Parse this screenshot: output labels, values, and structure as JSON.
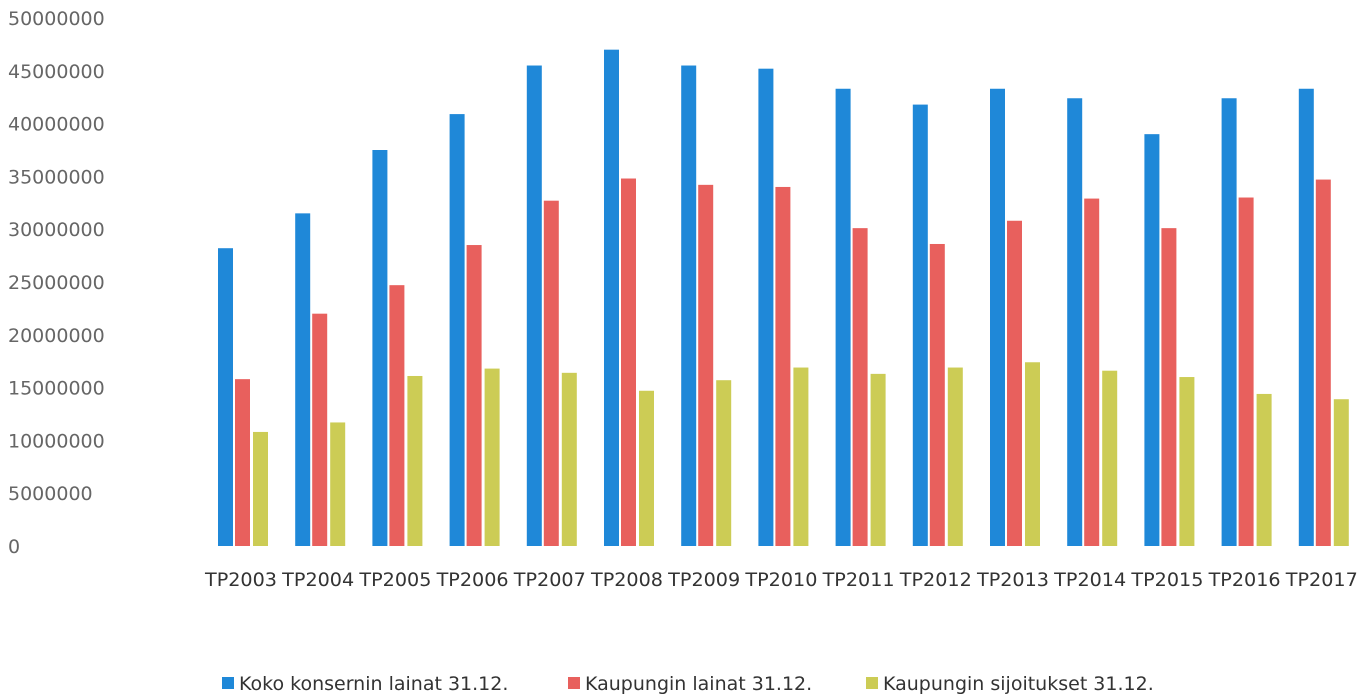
{
  "chart_data": {
    "type": "bar",
    "title": "",
    "xlabel": "",
    "ylabel": "",
    "ylim": [
      0,
      50000000
    ],
    "yticks": [
      0,
      5000000,
      10000000,
      15000000,
      20000000,
      25000000,
      30000000,
      35000000,
      40000000,
      45000000,
      50000000
    ],
    "grid": false,
    "legend_position": "bottom",
    "categories": [
      "TP2003",
      "TP2004",
      "TP2005",
      "TP2006",
      "TP2007",
      "TP2008",
      "TP2009",
      "TP2010",
      "TP2011",
      "TP2012",
      "TP2013",
      "TP2014",
      "TP2015",
      "TP2016",
      "TP2017"
    ],
    "series": [
      {
        "name": "Koko konsernin lainat 31.12.",
        "color": "#1f88d8",
        "values": [
          28200000,
          31500000,
          37500000,
          40900000,
          45500000,
          47000000,
          45500000,
          45200000,
          43300000,
          41800000,
          43300000,
          42400000,
          39000000,
          42400000,
          43300000
        ]
      },
      {
        "name": "Kaupungin lainat 31.12.",
        "color": "#e8605d",
        "values": [
          15800000,
          22000000,
          24700000,
          28500000,
          32700000,
          34800000,
          34200000,
          34000000,
          30100000,
          28600000,
          30800000,
          32900000,
          30100000,
          33000000,
          34700000
        ]
      },
      {
        "name": "Kaupungin sijoitukset 31.12.",
        "color": "#cccc55",
        "values": [
          10800000,
          11700000,
          16100000,
          16800000,
          16400000,
          14700000,
          15700000,
          16900000,
          16300000,
          16900000,
          17400000,
          16600000,
          16000000,
          14400000,
          13900000
        ]
      }
    ]
  }
}
